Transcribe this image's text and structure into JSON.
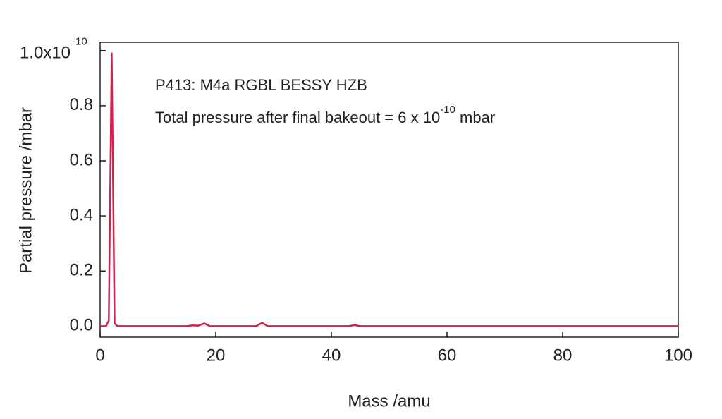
{
  "chart_data": {
    "type": "line",
    "annotations": [
      {
        "text": "P413: M4a RGBL BESSY HZB"
      },
      {
        "text": "Total pressure after final bakeout = 6 x 10",
        "superscript": "-10",
        "suffix": " mbar"
      }
    ],
    "x_label": "Mass /amu",
    "y_label": "Partial pressure /mbar",
    "x": [
      0,
      1,
      1.5,
      1.8,
      2,
      2.2,
      2.5,
      3,
      15,
      16,
      17,
      18,
      19,
      27,
      28,
      29,
      43,
      44,
      45,
      100
    ],
    "series": [
      {
        "color": "#d41f4f",
        "values": [
          0,
          0,
          0.02,
          0.6,
          0.99,
          0.6,
          0.01,
          0,
          0,
          0.003,
          0.002,
          0.01,
          0,
          0,
          0.012,
          0,
          0,
          0.004,
          0,
          0
        ]
      }
    ],
    "xlim": [
      0,
      100
    ],
    "ylim": [
      -0.04,
      1.03
    ],
    "xticks": [
      0,
      20,
      40,
      60,
      80,
      100
    ],
    "yticks": [
      {
        "value": 0,
        "label": "0.0"
      },
      0.2,
      0.4,
      0.6,
      0.8,
      {
        "value": 1,
        "label": "1.0x10",
        "superscript": "-10"
      }
    ]
  }
}
